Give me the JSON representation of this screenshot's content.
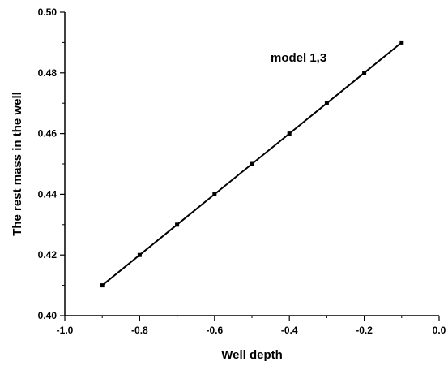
{
  "chart_data": {
    "type": "line",
    "xlabel": "Well depth",
    "ylabel": "The rest mass in the well",
    "xlim": [
      -1.0,
      0.0
    ],
    "ylim": [
      0.4,
      0.5
    ],
    "x_ticks": [
      -1.0,
      -0.8,
      -0.6,
      -0.4,
      -0.2,
      0.0
    ],
    "x_tick_labels": [
      "-1.0",
      "-0.8",
      "-0.6",
      "-0.4",
      "-0.2",
      "0.0"
    ],
    "y_ticks": [
      0.4,
      0.42,
      0.44,
      0.46,
      0.48,
      0.5
    ],
    "y_tick_labels": [
      "0.40",
      "0.42",
      "0.44",
      "0.46",
      "0.48",
      "0.50"
    ],
    "grid": false,
    "annotation": "model 1,3",
    "series": [
      {
        "x": [
          -0.9,
          -0.8,
          -0.7,
          -0.6,
          -0.5,
          -0.4,
          -0.3,
          -0.2,
          -0.1
        ],
        "y": [
          0.41,
          0.42,
          0.43,
          0.44,
          0.45,
          0.46,
          0.47,
          0.48,
          0.49
        ]
      }
    ],
    "line_color": "#000000",
    "marker": "square"
  }
}
